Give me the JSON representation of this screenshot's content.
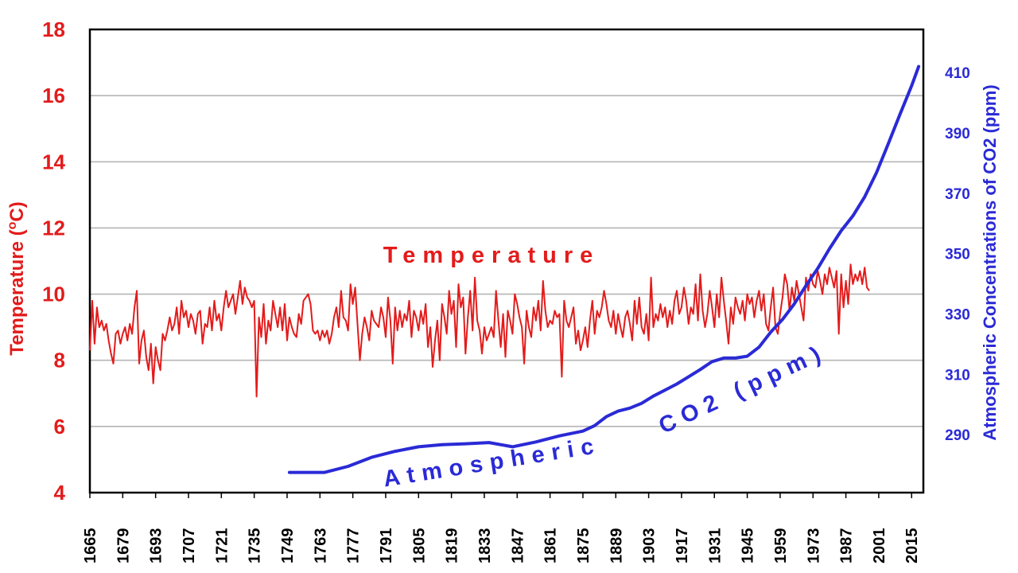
{
  "chart_data": {
    "type": "line",
    "x_start": 1665,
    "x_end": 2020,
    "x_ticks": [
      1665,
      1679,
      1693,
      1707,
      1721,
      1735,
      1749,
      1763,
      1777,
      1791,
      1805,
      1819,
      1833,
      1847,
      1861,
      1875,
      1889,
      1903,
      1917,
      1931,
      1945,
      1959,
      1973,
      1987,
      2001,
      2015
    ],
    "left_axis": {
      "label_main": "Temperature (",
      "label_sup": "o",
      "label_unit": "C)",
      "ylim": [
        4,
        18
      ],
      "ticks": [
        4,
        6,
        8,
        10,
        12,
        14,
        16,
        18
      ],
      "color": "#e31b1b"
    },
    "right_axis": {
      "label": "Atmospheric Concentrations of CO2 (ppm)",
      "ylim": [
        270.8,
        424.3
      ],
      "ticks": [
        290,
        310,
        330,
        350,
        370,
        390,
        410
      ],
      "color": "#2a2ad6"
    },
    "annotations": {
      "temperature": "Temperature",
      "co2_line1": "Atmospheric",
      "co2_line2": "CO2 (ppm)"
    },
    "series": [
      {
        "name": "Temperature",
        "axis": "left",
        "color": "#e31b1b",
        "x_start": 1665,
        "step": 1,
        "values": [
          8.3,
          9.8,
          8.5,
          9.6,
          9.0,
          9.2,
          8.9,
          9.1,
          8.6,
          8.2,
          7.9,
          8.8,
          8.9,
          8.5,
          8.8,
          9.0,
          8.6,
          9.1,
          8.8,
          9.6,
          10.1,
          7.9,
          8.6,
          8.9,
          8.1,
          7.7,
          8.5,
          7.3,
          8.4,
          8.0,
          7.7,
          8.8,
          8.6,
          8.9,
          9.3,
          8.9,
          9.1,
          9.6,
          8.8,
          9.8,
          9.3,
          9.5,
          9.0,
          9.4,
          9.2,
          8.8,
          9.4,
          9.5,
          8.5,
          9.1,
          9.0,
          9.6,
          8.9,
          9.8,
          9.2,
          9.4,
          8.9,
          9.6,
          10.1,
          9.6,
          9.8,
          10.0,
          9.4,
          9.9,
          10.4,
          9.7,
          10.2,
          9.9,
          9.8,
          9.6,
          9.8,
          6.9,
          9.3,
          8.7,
          9.7,
          8.5,
          9.2,
          8.9,
          9.8,
          9.4,
          9.0,
          9.6,
          8.9,
          9.7,
          8.6,
          9.3,
          9.0,
          8.8,
          8.7,
          9.4,
          9.1,
          9.8,
          9.9,
          10.0,
          9.7,
          8.9,
          8.8,
          8.9,
          8.6,
          8.9,
          8.7,
          8.9,
          8.5,
          8.8,
          9.3,
          9.6,
          9.0,
          10.1,
          9.3,
          9.2,
          8.9,
          10.3,
          9.7,
          10.2,
          9.1,
          8.0,
          8.8,
          9.3,
          9.0,
          8.6,
          9.5,
          9.2,
          9.1,
          9.0,
          9.6,
          9.3,
          8.7,
          9.9,
          9.2,
          7.9,
          9.6,
          8.9,
          9.5,
          9.0,
          9.4,
          9.2,
          9.8,
          8.7,
          9.5,
          9.3,
          8.9,
          9.5,
          9.1,
          9.7,
          8.4,
          9.0,
          7.8,
          8.6,
          9.2,
          8.0,
          9.7,
          9.3,
          8.8,
          10.1,
          9.4,
          9.8,
          8.4,
          10.3,
          9.6,
          9.9,
          8.2,
          9.3,
          10.1,
          8.9,
          10.5,
          9.2,
          8.9,
          8.2,
          9.0,
          8.6,
          8.8,
          9.0,
          8.7,
          10.1,
          9.2,
          8.4,
          9.4,
          8.1,
          9.5,
          9.2,
          8.8,
          10.0,
          9.7,
          9.3,
          9.0,
          7.9,
          9.5,
          9.0,
          8.7,
          9.6,
          9.2,
          9.8,
          8.9,
          10.4,
          9.5,
          9.0,
          9.2,
          9.1,
          9.5,
          9.3,
          9.4,
          7.5,
          9.8,
          9.2,
          9.0,
          9.3,
          9.6,
          8.5,
          8.9,
          8.3,
          8.6,
          9.0,
          8.4,
          9.2,
          9.8,
          8.8,
          9.5,
          9.3,
          9.6,
          10.1,
          9.7,
          9.2,
          9.0,
          9.5,
          8.8,
          9.4,
          9.0,
          8.7,
          9.3,
          9.5,
          9.1,
          8.6,
          9.8,
          9.1,
          9.9,
          9.0,
          8.8,
          9.4,
          8.6,
          10.5,
          9.0,
          9.4,
          9.2,
          9.7,
          9.3,
          9.6,
          9.0,
          9.5,
          9.1,
          9.8,
          10.1,
          9.4,
          9.6,
          10.2,
          9.8,
          9.1,
          9.6,
          9.4,
          10.3,
          9.2,
          10.6,
          9.5,
          9.0,
          9.4,
          10.1,
          9.6,
          9.0,
          10.0,
          9.3,
          10.5,
          9.8,
          9.2,
          8.5,
          9.6,
          9.1,
          9.9,
          9.6,
          9.4,
          9.8,
          9.2,
          10.0,
          9.7,
          9.9,
          9.3,
          9.8,
          10.1,
          9.5,
          10.0,
          9.1,
          8.9,
          9.6,
          10.2,
          9.0,
          8.8,
          9.4,
          9.9,
          10.6,
          10.3,
          9.5,
          10.2,
          9.8,
          10.4,
          10.0,
          9.6,
          9.2,
          10.5,
          10.1,
          10.6,
          10.3,
          10.2,
          10.7,
          10.4,
          10.0,
          10.6,
          10.3,
          10.8,
          10.5,
          10.2,
          10.7,
          8.8,
          10.6,
          9.6,
          10.4,
          9.7,
          10.9,
          10.3,
          10.6,
          10.4,
          10.7,
          10.3,
          10.8,
          10.2,
          10.1
        ]
      },
      {
        "name": "CO2",
        "axis": "right",
        "color": "#2a2ad6",
        "x": [
          1750,
          1765,
          1775,
          1785,
          1795,
          1805,
          1815,
          1825,
          1835,
          1845,
          1855,
          1865,
          1875,
          1880,
          1885,
          1890,
          1895,
          1900,
          1905,
          1910,
          1915,
          1920,
          1925,
          1930,
          1935,
          1940,
          1945,
          1950,
          1955,
          1960,
          1965,
          1970,
          1975,
          1980,
          1985,
          1990,
          1995,
          2000,
          2005,
          2010,
          2015,
          2018
        ],
        "values": [
          277.5,
          277.5,
          279.5,
          282.5,
          284.5,
          286,
          286.7,
          287,
          287.4,
          286,
          287.6,
          289.6,
          291.2,
          293,
          296,
          297.8,
          298.8,
          300.4,
          302.8,
          304.8,
          306.8,
          309.2,
          311.6,
          314.2,
          315.4,
          315.4,
          316,
          319,
          324,
          328.2,
          333.3,
          339.4,
          345.1,
          351.6,
          357.6,
          362.5,
          368.8,
          376.8,
          386.3,
          396.1,
          405.6,
          412
        ]
      }
    ]
  }
}
